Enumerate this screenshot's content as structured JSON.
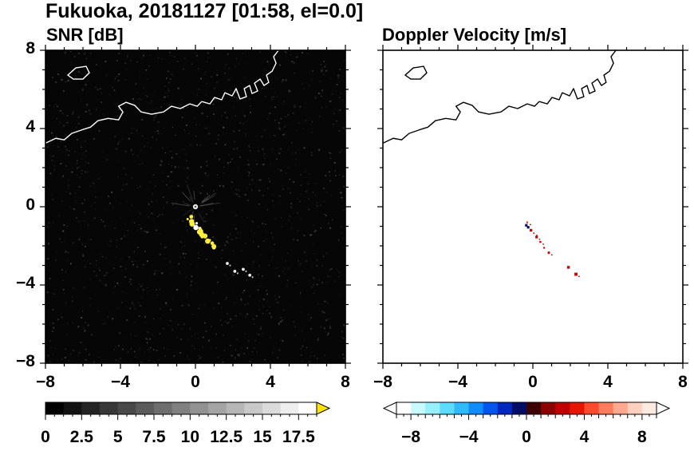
{
  "title": "Fukuoka, 20181127 [01:58, el=0.0]",
  "panels": {
    "snr": {
      "title": "SNR [dB]",
      "bg": "#060606",
      "coast_color": "#ffffff",
      "dark": true
    },
    "velocity": {
      "title": "Doppler Velocity [m/s]",
      "bg": "#ffffff",
      "coast_color": "#000000",
      "dark": false
    }
  },
  "axes": {
    "range": [
      -8,
      8
    ],
    "major_ticks": [
      -8,
      -4,
      0,
      4,
      8
    ],
    "minor_step": 1,
    "x_tick_labels": [
      "−8",
      "−4",
      "0",
      "4",
      "8"
    ],
    "y_tick_labels": [
      "8",
      "4",
      "0",
      "−4",
      "−8"
    ]
  },
  "colorbars": {
    "snr": {
      "range": [
        0,
        18.75
      ],
      "tick_values": [
        0,
        2.5,
        5,
        7.5,
        10,
        12.5,
        15,
        17.5
      ],
      "tick_labels": [
        "0",
        "2.5",
        "5",
        "7.5",
        "10",
        "12.5",
        "15",
        "17.5"
      ],
      "minor_step": 0.625,
      "segments": [
        "#000000",
        "#121212",
        "#242424",
        "#373737",
        "#494949",
        "#5b5b5b",
        "#6d6d6d",
        "#808080",
        "#929292",
        "#a4a4a4",
        "#b6b6b6",
        "#c9c9c9",
        "#dbdbdb",
        "#ededed",
        "#ffffff"
      ],
      "over_arrow_color": "#ffe400"
    },
    "velocity": {
      "range": [
        -9,
        9
      ],
      "tick_values": [
        -8,
        -4,
        0,
        4,
        8
      ],
      "tick_labels": [
        "−8",
        "−4",
        "0",
        "4",
        "8"
      ],
      "minor_step": 0.5,
      "segments": [
        "#ffffff",
        "#c8fbff",
        "#96f0ff",
        "#5cdcff",
        "#2fb9ff",
        "#0f8dff",
        "#0055f0",
        "#0026c0",
        "#000d62",
        "#3c0000",
        "#8c0000",
        "#c00000",
        "#e51500",
        "#ff4a2e",
        "#ff7d5e",
        "#ffa98e",
        "#ffcfc0",
        "#ffeae2"
      ],
      "under_arrow_color": "#ffffff",
      "over_arrow_color": "#ffffff"
    }
  },
  "map": {
    "coastline": [
      [
        -8.0,
        3.25
      ],
      [
        -7.45,
        3.5
      ],
      [
        -7.0,
        3.42
      ],
      [
        -6.6,
        3.75
      ],
      [
        -6.0,
        3.95
      ],
      [
        -5.6,
        4.07
      ],
      [
        -5.2,
        4.4
      ],
      [
        -4.65,
        4.52
      ],
      [
        -4.1,
        4.44
      ],
      [
        -3.87,
        4.85
      ],
      [
        -4.1,
        5.14
      ],
      [
        -3.7,
        5.34
      ],
      [
        -3.23,
        5.18
      ],
      [
        -2.9,
        4.85
      ],
      [
        -2.34,
        4.73
      ],
      [
        -1.7,
        4.85
      ],
      [
        -1.28,
        5.14
      ],
      [
        -0.81,
        5.02
      ],
      [
        -0.3,
        5.26
      ],
      [
        0.09,
        5.14
      ],
      [
        0.34,
        5.38
      ],
      [
        0.77,
        5.26
      ],
      [
        1.02,
        5.59
      ],
      [
        1.4,
        5.47
      ],
      [
        1.57,
        5.83
      ],
      [
        1.96,
        5.67
      ],
      [
        2.17,
        6.04
      ],
      [
        2.38,
        5.51
      ],
      [
        2.72,
        5.63
      ],
      [
        2.6,
        6.04
      ],
      [
        2.89,
        6.2
      ],
      [
        3.02,
        5.79
      ],
      [
        3.32,
        5.92
      ],
      [
        3.15,
        6.32
      ],
      [
        3.45,
        6.53
      ],
      [
        3.66,
        6.2
      ],
      [
        3.91,
        6.36
      ],
      [
        3.79,
        6.73
      ],
      [
        4.09,
        6.93
      ],
      [
        4.3,
        7.34
      ],
      [
        4.17,
        7.67
      ],
      [
        4.43,
        8.0
      ]
    ],
    "island": [
      [
        -6.81,
        6.73
      ],
      [
        -6.38,
        7.1
      ],
      [
        -5.83,
        7.18
      ],
      [
        -5.66,
        6.85
      ],
      [
        -6.0,
        6.53
      ],
      [
        -6.51,
        6.53
      ]
    ]
  },
  "chart_data": [
    {
      "type": "heatmap",
      "title": "SNR [dB]",
      "xlim": [
        -8,
        8
      ],
      "ylim": [
        -8,
        8
      ],
      "xticks": [
        -8,
        -4,
        0,
        4,
        8
      ],
      "yticks": [
        -8,
        -4,
        0,
        4,
        8
      ],
      "colorbar": {
        "ticks": [
          0,
          2.5,
          5,
          7.5,
          10,
          12.5,
          15,
          17.5
        ],
        "range": [
          0,
          18.75
        ],
        "colormap": "black-to-white grayscale with yellow over-range arrow"
      },
      "background_value": "near 0 dB (black speckle noise over full disc)",
      "features": [
        {
          "name": "radar-center-echo",
          "x": 0,
          "y": 0,
          "value": "bright point echo with faint radial spokes"
        },
        {
          "name": "strong-echo-streak",
          "from": [
            -0.35,
            -0.55
          ],
          "to": [
            1.0,
            -2.05
          ],
          "value": "> 17.5 dB (saturated yellow streak)"
        },
        {
          "name": "scattered-echoes",
          "points": [
            [
              1.7,
              -2.9
            ],
            [
              2.1,
              -3.3
            ],
            [
              2.55,
              -3.2
            ],
            [
              2.9,
              -3.5
            ]
          ],
          "value": "10–17 dB (white specks)"
        }
      ]
    },
    {
      "type": "heatmap",
      "title": "Doppler Velocity [m/s]",
      "xlim": [
        -8,
        8
      ],
      "ylim": [
        -8,
        8
      ],
      "xticks": [
        -8,
        -4,
        0,
        4,
        8
      ],
      "yticks": [
        -8,
        -4,
        0,
        4,
        8
      ],
      "colorbar": {
        "ticks": [
          -8,
          -4,
          0,
          4,
          8
        ],
        "range": [
          -9,
          9
        ],
        "colormap": "diverging cyan-blue-black-red-white"
      },
      "background_value": "no data (white)",
      "features": [
        {
          "name": "negative-velocity-specks",
          "points": [
            [
              -0.35,
              -0.95
            ],
            [
              -0.25,
              -1.05
            ]
          ],
          "value": "≈ −1 to −3 m/s (dark blue/black)"
        },
        {
          "name": "positive-velocity-specks",
          "points": [
            [
              -0.3,
              -0.8
            ],
            [
              -0.1,
              -1.2
            ],
            [
              0.05,
              -1.35
            ],
            [
              0.2,
              -1.55
            ],
            [
              0.4,
              -1.8
            ],
            [
              0.6,
              -2.1
            ],
            [
              0.85,
              -2.35
            ],
            [
              1.9,
              -3.1
            ],
            [
              2.3,
              -3.45
            ]
          ],
          "value": "≈ +1 to +3 m/s (red)"
        }
      ]
    }
  ]
}
